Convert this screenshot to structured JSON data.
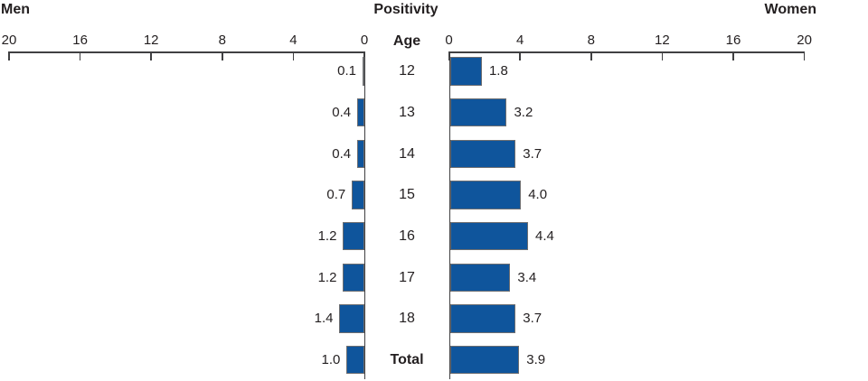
{
  "header": {
    "left": "Men",
    "title": "Positivity",
    "right": "Women",
    "age": "Age"
  },
  "colors": {
    "bar_fill": "#0F559C",
    "bar_border": "#6D6E71",
    "axis": "#404042",
    "text": "#231F20"
  },
  "chart_data": {
    "type": "bar",
    "orientation": "horizontal-pyramid",
    "title": "Positivity",
    "categories": [
      "12",
      "13",
      "14",
      "15",
      "16",
      "17",
      "18",
      "Total"
    ],
    "category_axis_label": "Age",
    "last_category_bold": true,
    "series": [
      {
        "name": "Men",
        "side": "left",
        "values": [
          0.1,
          0.4,
          0.4,
          0.7,
          1.2,
          1.2,
          1.4,
          1.0
        ]
      },
      {
        "name": "Women",
        "side": "right",
        "values": [
          1.8,
          3.2,
          3.7,
          4.0,
          4.4,
          3.4,
          3.7,
          3.9
        ]
      }
    ],
    "value_labels_decimals": 1,
    "axis_range": [
      0,
      20
    ],
    "tick_step": 4,
    "ticks_left": [
      20,
      16,
      12,
      8,
      4,
      0
    ],
    "ticks_right": [
      0,
      4,
      8,
      12,
      16,
      20
    ],
    "grid": false,
    "legend": false
  }
}
